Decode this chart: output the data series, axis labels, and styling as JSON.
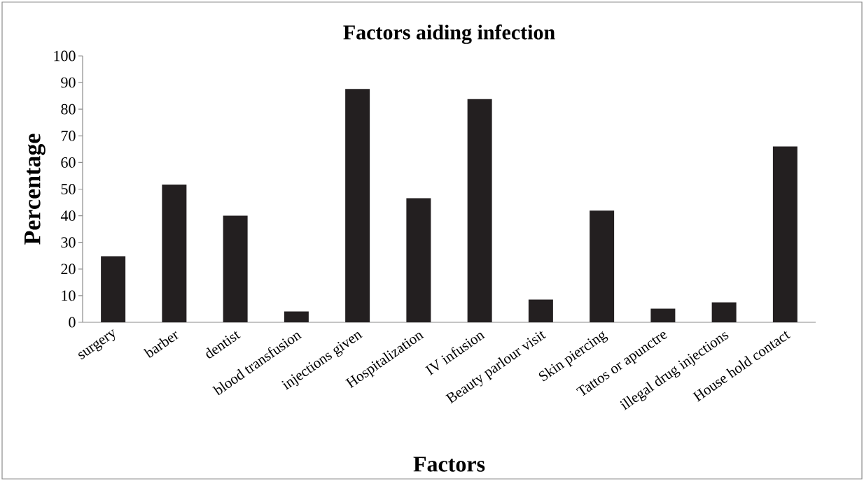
{
  "chart_data": {
    "type": "bar",
    "title": "Factors aiding infection",
    "xlabel": "Factors",
    "ylabel": "Percentage",
    "categories": [
      "surgery",
      "barber",
      "dentist",
      "blood transfusion",
      "injections given",
      "Hospitalization",
      "IV infusion",
      "Beauty parlour visit",
      "Skin piercing",
      "Tattos or apunctre",
      "illegal drug injections",
      "House hold contact"
    ],
    "values": [
      24.8,
      51.7,
      40.0,
      4.1,
      87.6,
      46.6,
      83.8,
      8.5,
      41.9,
      5.1,
      7.5,
      66.0
    ],
    "color": "#231f20",
    "ylim": [
      0,
      100
    ],
    "yticks": [
      0,
      10,
      20,
      30,
      40,
      50,
      60,
      70,
      80,
      90,
      100
    ]
  }
}
